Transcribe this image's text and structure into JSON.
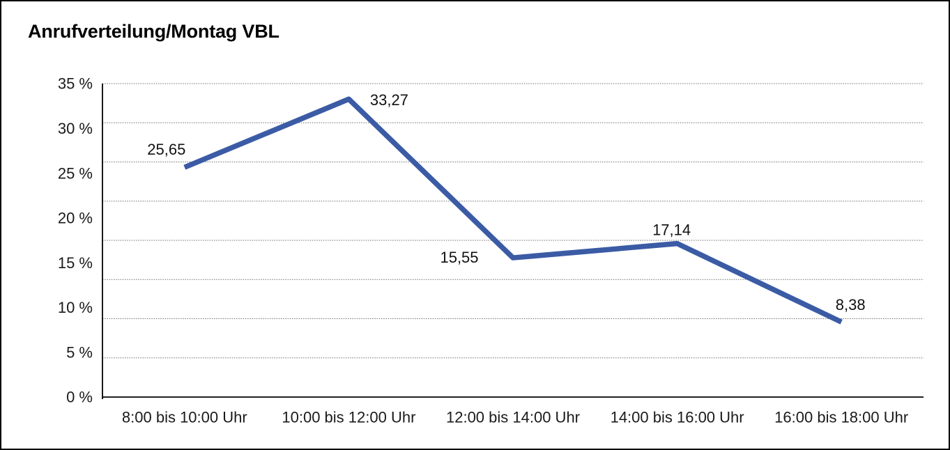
{
  "title": "Anrufverteilung/Montag VBL",
  "chart_data": {
    "type": "line",
    "title": "Anrufverteilung/Montag VBL",
    "categories": [
      "8:00 bis 10:00 Uhr",
      "10:00 bis 12:00 Uhr",
      "12:00 bis 14:00 Uhr",
      "14:00 bis 16:00 Uhr",
      "16:00 bis 18:00 Uhr"
    ],
    "values": [
      25.65,
      33.27,
      15.55,
      17.14,
      8.38
    ],
    "value_labels": [
      "25,65",
      "33,27",
      "15,55",
      "17,14",
      "8,38"
    ],
    "yticks": [
      35,
      30,
      25,
      20,
      15,
      10,
      5,
      0
    ],
    "ytick_labels": [
      "35 %",
      "30 %",
      "25 %",
      "20 %",
      "15 %",
      "10 %",
      "5 %",
      "0 %"
    ],
    "ylim": [
      0,
      35
    ],
    "xlabel": "",
    "ylabel": "",
    "grid": true,
    "gridline_count": 9,
    "gridline_style": "dotted",
    "legend": "none",
    "line_color": "#3b5ba5",
    "gridline_color": "#6f6f6f",
    "axis_color": "#000000",
    "text_color": "#1a1a1a"
  }
}
